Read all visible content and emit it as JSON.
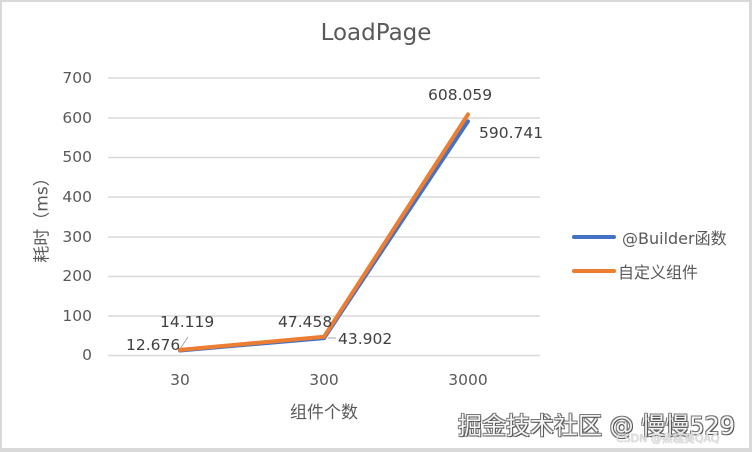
{
  "chart_data": {
    "type": "line",
    "title": "LoadPage",
    "xlabel": "组件个数",
    "ylabel": "耗时（ms）",
    "categories": [
      "30",
      "300",
      "3000"
    ],
    "ylim": [
      0,
      700
    ],
    "yticks": [
      "0",
      "100",
      "200",
      "300",
      "400",
      "500",
      "600",
      "700"
    ],
    "grid": true,
    "legend_position": "right",
    "series": [
      {
        "name": "@Builder函数",
        "color": "#4472c4",
        "values": [
          12.676,
          43.902,
          590.741
        ],
        "labels": [
          "12.676",
          "43.902",
          "590.741"
        ]
      },
      {
        "name": "自定义组件",
        "color": "#ed7d31",
        "values": [
          14.119,
          47.458,
          608.059
        ],
        "labels": [
          "14.119",
          "47.458",
          "608.059"
        ]
      }
    ]
  },
  "watermark": {
    "main": "掘金技术社区 @ 慢慢529",
    "secondary": "CSDN @烝糕美QAQ"
  }
}
